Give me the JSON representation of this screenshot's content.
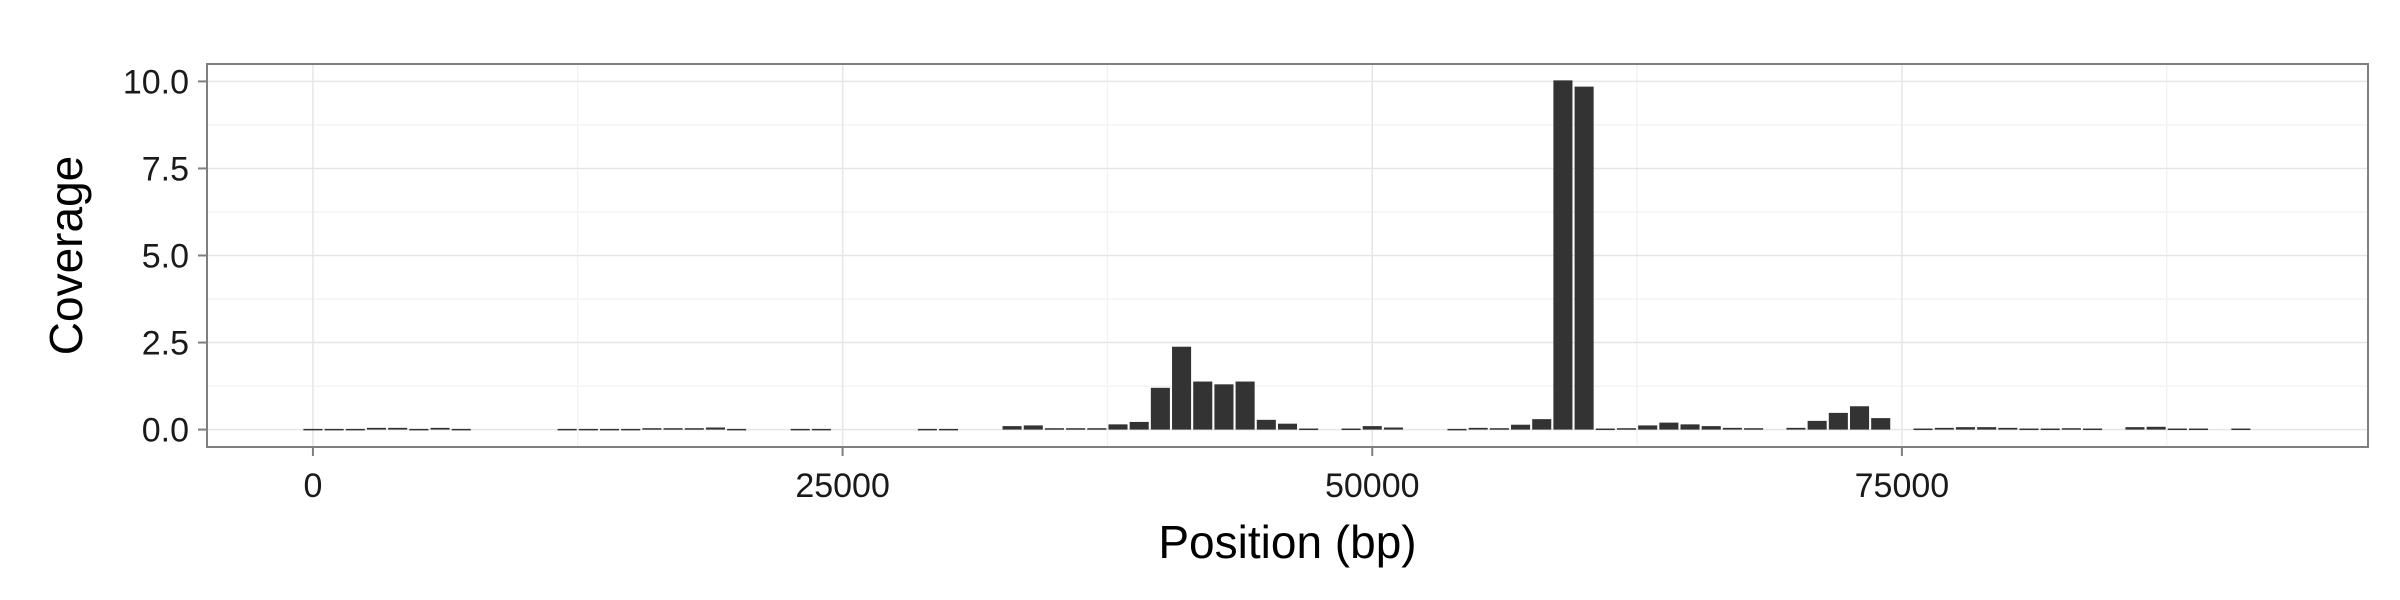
{
  "chart_data": {
    "type": "bar",
    "xlabel": "Position (bp)",
    "ylabel": "Coverage",
    "xlim": [
      -5000,
      97000
    ],
    "ylim": [
      -0.5,
      10.5
    ],
    "xticks": [
      0,
      25000,
      50000,
      75000
    ],
    "xtick_labels": [
      "0",
      "25000",
      "50000",
      "75000"
    ],
    "yticks": [
      0.0,
      2.5,
      5.0,
      7.5,
      10.0
    ],
    "ytick_labels": [
      "0.0",
      "2.5",
      "5.0",
      "7.5",
      "10.0"
    ],
    "grid": true,
    "bar_width": 1000,
    "bars": [
      {
        "x": 0,
        "y": 0.02
      },
      {
        "x": 1000,
        "y": 0.02
      },
      {
        "x": 2000,
        "y": 0.02
      },
      {
        "x": 3000,
        "y": 0.05
      },
      {
        "x": 4000,
        "y": 0.05
      },
      {
        "x": 5000,
        "y": 0.02
      },
      {
        "x": 6000,
        "y": 0.05
      },
      {
        "x": 7000,
        "y": 0.02
      },
      {
        "x": 12000,
        "y": 0.02
      },
      {
        "x": 13000,
        "y": 0.02
      },
      {
        "x": 14000,
        "y": 0.02
      },
      {
        "x": 15000,
        "y": 0.02
      },
      {
        "x": 16000,
        "y": 0.04
      },
      {
        "x": 17000,
        "y": 0.04
      },
      {
        "x": 18000,
        "y": 0.04
      },
      {
        "x": 19000,
        "y": 0.06
      },
      {
        "x": 20000,
        "y": 0.02
      },
      {
        "x": 23000,
        "y": 0.02
      },
      {
        "x": 24000,
        "y": 0.02
      },
      {
        "x": 29000,
        "y": 0.02
      },
      {
        "x": 30000,
        "y": 0.02
      },
      {
        "x": 33000,
        "y": 0.1
      },
      {
        "x": 34000,
        "y": 0.12
      },
      {
        "x": 35000,
        "y": 0.04
      },
      {
        "x": 36000,
        "y": 0.04
      },
      {
        "x": 37000,
        "y": 0.04
      },
      {
        "x": 38000,
        "y": 0.15
      },
      {
        "x": 39000,
        "y": 0.22
      },
      {
        "x": 40000,
        "y": 1.2
      },
      {
        "x": 41000,
        "y": 2.38
      },
      {
        "x": 42000,
        "y": 1.38
      },
      {
        "x": 43000,
        "y": 1.3
      },
      {
        "x": 44000,
        "y": 1.38
      },
      {
        "x": 45000,
        "y": 0.28
      },
      {
        "x": 46000,
        "y": 0.17
      },
      {
        "x": 47000,
        "y": 0.03
      },
      {
        "x": 49000,
        "y": 0.03
      },
      {
        "x": 50000,
        "y": 0.1
      },
      {
        "x": 51000,
        "y": 0.06
      },
      {
        "x": 54000,
        "y": 0.02
      },
      {
        "x": 55000,
        "y": 0.05
      },
      {
        "x": 56000,
        "y": 0.04
      },
      {
        "x": 57000,
        "y": 0.14
      },
      {
        "x": 58000,
        "y": 0.3
      },
      {
        "x": 59000,
        "y": 10.03
      },
      {
        "x": 60000,
        "y": 9.85
      },
      {
        "x": 61000,
        "y": 0.03
      },
      {
        "x": 62000,
        "y": 0.04
      },
      {
        "x": 63000,
        "y": 0.12
      },
      {
        "x": 64000,
        "y": 0.2
      },
      {
        "x": 65000,
        "y": 0.15
      },
      {
        "x": 66000,
        "y": 0.1
      },
      {
        "x": 67000,
        "y": 0.05
      },
      {
        "x": 68000,
        "y": 0.04
      },
      {
        "x": 70000,
        "y": 0.05
      },
      {
        "x": 71000,
        "y": 0.25
      },
      {
        "x": 72000,
        "y": 0.48
      },
      {
        "x": 73000,
        "y": 0.67
      },
      {
        "x": 74000,
        "y": 0.33
      },
      {
        "x": 76000,
        "y": 0.03
      },
      {
        "x": 77000,
        "y": 0.05
      },
      {
        "x": 78000,
        "y": 0.07
      },
      {
        "x": 79000,
        "y": 0.07
      },
      {
        "x": 80000,
        "y": 0.05
      },
      {
        "x": 81000,
        "y": 0.03
      },
      {
        "x": 82000,
        "y": 0.03
      },
      {
        "x": 83000,
        "y": 0.04
      },
      {
        "x": 84000,
        "y": 0.03
      },
      {
        "x": 86000,
        "y": 0.07
      },
      {
        "x": 87000,
        "y": 0.08
      },
      {
        "x": 88000,
        "y": 0.03
      },
      {
        "x": 89000,
        "y": 0.03
      },
      {
        "x": 91000,
        "y": 0.03
      }
    ],
    "colors": {
      "bar": "#333333",
      "panel_border": "#7f7f7f",
      "grid_major": "#e6e6e6",
      "grid_minor": "#f3f3f3",
      "tick": "#7f7f7f"
    }
  }
}
